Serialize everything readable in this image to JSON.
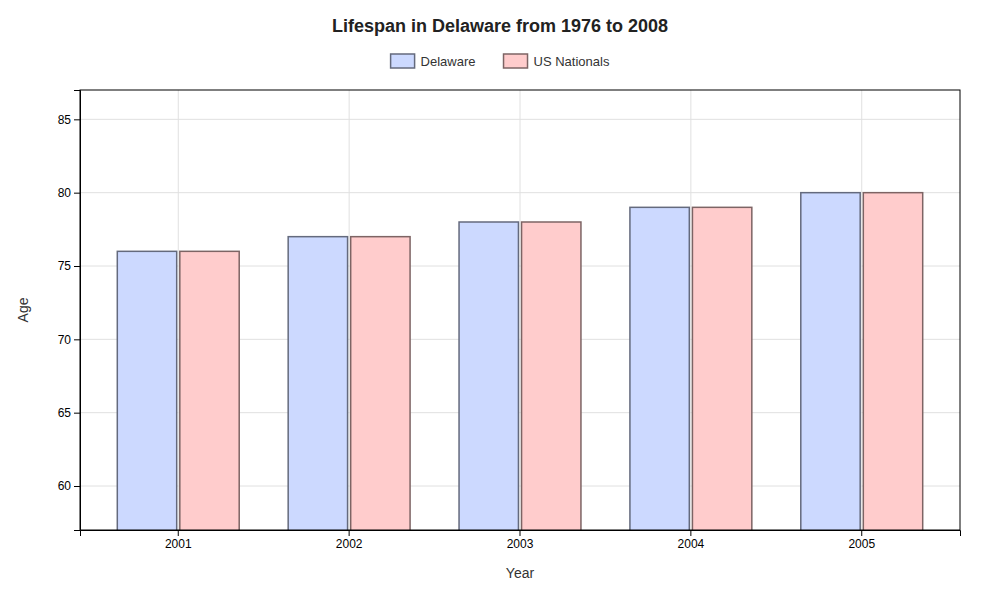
{
  "chart_data": {
    "type": "bar",
    "title": "Lifespan in Delaware from 1976 to 2008",
    "xlabel": "Year",
    "ylabel": "Age",
    "categories": [
      "2001",
      "2002",
      "2003",
      "2004",
      "2005"
    ],
    "series": [
      {
        "name": "Delaware",
        "color": "#ccd9ff",
        "values": [
          76,
          77,
          78,
          79,
          80
        ]
      },
      {
        "name": "US Nationals",
        "color": "#ffcccc",
        "values": [
          76,
          77,
          78,
          79,
          80
        ]
      }
    ],
    "ylim": [
      57,
      87
    ],
    "yticks": [
      60,
      65,
      70,
      75,
      80,
      85
    ],
    "grid": true,
    "legend": "top"
  }
}
